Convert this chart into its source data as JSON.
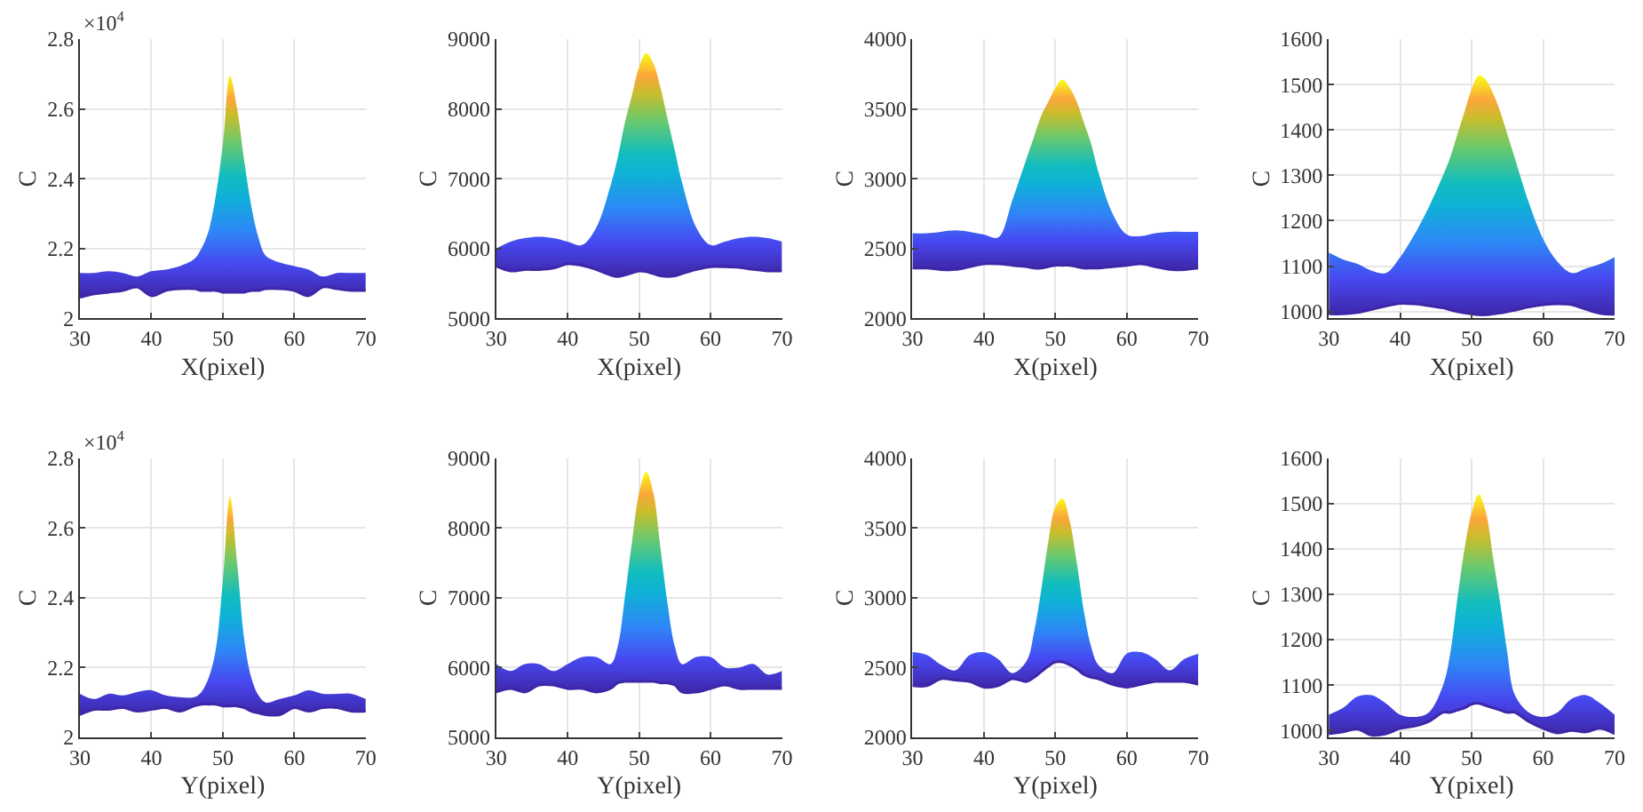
{
  "chart_data": [
    {
      "type": "area",
      "xlabel": "X(pixel)",
      "ylabel": "C",
      "annotations": [
        "×10$^{4}$"
      ],
      "grid": true,
      "xlim": [
        30,
        70
      ],
      "xticks": [
        30,
        40,
        50,
        60,
        70
      ],
      "ylim": [
        2,
        2.8
      ],
      "yticks": [
        2,
        2.2,
        2.4,
        2.6,
        2.8
      ],
      "x": [
        30,
        32,
        34,
        36,
        38,
        40,
        42,
        44,
        46,
        47,
        48,
        49,
        50,
        51,
        52,
        53,
        54,
        55,
        56,
        58,
        60,
        62,
        64,
        66,
        68,
        70
      ],
      "series": [
        {
          "type": "line",
          "color": "#3e26a8",
          "values": [
            2.06,
            2.07,
            2.075,
            2.08,
            2.09,
            2.065,
            2.08,
            2.085,
            2.085,
            2.08,
            2.08,
            2.08,
            2.075,
            2.075,
            2.075,
            2.075,
            2.08,
            2.08,
            2.085,
            2.085,
            2.08,
            2.065,
            2.09,
            2.085,
            2.08,
            2.08
          ]
        },
        {
          "values": [
            2.13,
            2.13,
            2.135,
            2.13,
            2.12,
            2.135,
            2.14,
            2.15,
            2.17,
            2.2,
            2.25,
            2.35,
            2.5,
            2.695,
            2.6,
            2.45,
            2.32,
            2.23,
            2.18,
            2.16,
            2.15,
            2.14,
            2.12,
            2.13,
            2.13,
            2.13
          ]
        }
      ]
    },
    {
      "type": "area",
      "xlabel": "X(pixel)",
      "ylabel": "C",
      "grid": true,
      "xlim": [
        30,
        70
      ],
      "xticks": [
        30,
        40,
        50,
        60,
        70
      ],
      "ylim": [
        5000,
        9000
      ],
      "yticks": [
        5000,
        6000,
        7000,
        8000,
        9000
      ],
      "x": [
        30,
        32,
        34,
        36,
        38,
        40,
        42,
        44,
        46,
        47,
        48,
        49,
        50,
        51,
        52,
        53,
        54,
        55,
        56,
        58,
        60,
        62,
        64,
        66,
        68,
        70
      ],
      "series": [
        {
          "type": "line",
          "color": "#3e26a8",
          "values": [
            5750,
            5680,
            5700,
            5700,
            5720,
            5780,
            5760,
            5700,
            5620,
            5600,
            5620,
            5650,
            5680,
            5670,
            5640,
            5610,
            5600,
            5610,
            5640,
            5700,
            5740,
            5740,
            5730,
            5700,
            5680,
            5680
          ]
        },
        {
          "values": [
            6000,
            6100,
            6150,
            6170,
            6150,
            6100,
            6050,
            6300,
            6900,
            7300,
            7800,
            8200,
            8600,
            8800,
            8650,
            8300,
            7850,
            7400,
            6950,
            6300,
            6050,
            6100,
            6150,
            6170,
            6150,
            6100
          ]
        }
      ]
    },
    {
      "type": "area",
      "xlabel": "X(pixel)",
      "ylabel": "C",
      "grid": true,
      "xlim": [
        30,
        70
      ],
      "xticks": [
        30,
        40,
        50,
        60,
        70
      ],
      "ylim": [
        2000,
        4000
      ],
      "yticks": [
        2000,
        2500,
        3000,
        3500,
        4000
      ],
      "x": [
        30,
        32,
        34,
        36,
        38,
        40,
        42,
        44,
        46,
        47,
        48,
        49,
        50,
        51,
        52,
        53,
        54,
        55,
        56,
        58,
        60,
        62,
        64,
        66,
        68,
        70
      ],
      "series": [
        {
          "type": "line",
          "color": "#3e26a8",
          "values": [
            2360,
            2360,
            2350,
            2350,
            2370,
            2390,
            2390,
            2380,
            2370,
            2360,
            2360,
            2370,
            2380,
            2380,
            2380,
            2370,
            2360,
            2360,
            2360,
            2370,
            2380,
            2390,
            2370,
            2350,
            2350,
            2360
          ]
        },
        {
          "values": [
            2610,
            2610,
            2620,
            2630,
            2620,
            2600,
            2580,
            2850,
            3150,
            3300,
            3450,
            3550,
            3650,
            3710,
            3650,
            3550,
            3400,
            3250,
            3050,
            2750,
            2600,
            2590,
            2610,
            2620,
            2620,
            2620
          ]
        }
      ]
    },
    {
      "type": "area",
      "xlabel": "X(pixel)",
      "ylabel": "C",
      "grid": true,
      "xlim": [
        30,
        70
      ],
      "xticks": [
        30,
        40,
        50,
        60,
        70
      ],
      "ylim": [
        985,
        1600
      ],
      "yticks": [
        1000,
        1100,
        1200,
        1300,
        1400,
        1500,
        1600
      ],
      "x": [
        30,
        32,
        34,
        36,
        38,
        40,
        42,
        44,
        46,
        47,
        48,
        49,
        50,
        51,
        52,
        53,
        54,
        55,
        56,
        58,
        60,
        62,
        64,
        66,
        68,
        70
      ],
      "series": [
        {
          "type": "line",
          "color": "#3e26a8",
          "values": [
            995,
            995,
            998,
            1005,
            1012,
            1018,
            1017,
            1013,
            1008,
            1004,
            1000,
            997,
            995,
            993,
            993,
            995,
            997,
            1000,
            1003,
            1010,
            1015,
            1017,
            1015,
            1005,
            996,
            994
          ]
        },
        {
          "values": [
            1130,
            1115,
            1105,
            1090,
            1085,
            1120,
            1170,
            1230,
            1300,
            1340,
            1390,
            1440,
            1490,
            1520,
            1510,
            1480,
            1440,
            1390,
            1340,
            1240,
            1160,
            1110,
            1085,
            1095,
            1105,
            1120
          ]
        }
      ]
    },
    {
      "type": "area",
      "xlabel": "Y(pixel)",
      "ylabel": "C",
      "annotations": [
        "×10$^{4}$"
      ],
      "grid": true,
      "xlim": [
        30,
        70
      ],
      "xticks": [
        30,
        40,
        50,
        60,
        70
      ],
      "ylim": [
        2,
        2.8
      ],
      "yticks": [
        2,
        2.2,
        2.4,
        2.6,
        2.8
      ],
      "x": [
        30,
        32,
        34,
        36,
        38,
        40,
        42,
        44,
        46,
        47,
        48,
        49,
        50,
        51,
        52,
        53,
        54,
        55,
        56,
        58,
        60,
        62,
        64,
        66,
        68,
        70
      ],
      "series": [
        {
          "type": "line",
          "color": "#3e26a8",
          "values": [
            2.065,
            2.08,
            2.08,
            2.085,
            2.075,
            2.08,
            2.085,
            2.075,
            2.09,
            2.095,
            2.095,
            2.095,
            2.09,
            2.09,
            2.09,
            2.085,
            2.075,
            2.07,
            2.065,
            2.065,
            2.085,
            2.075,
            2.085,
            2.085,
            2.075,
            2.075
          ]
        },
        {
          "values": [
            2.125,
            2.11,
            2.125,
            2.12,
            2.13,
            2.135,
            2.12,
            2.115,
            2.115,
            2.13,
            2.17,
            2.25,
            2.45,
            2.69,
            2.5,
            2.28,
            2.17,
            2.12,
            2.1,
            2.11,
            2.12,
            2.135,
            2.125,
            2.125,
            2.125,
            2.11
          ]
        }
      ]
    },
    {
      "type": "area",
      "xlabel": "Y(pixel)",
      "ylabel": "C",
      "grid": true,
      "xlim": [
        30,
        70
      ],
      "xticks": [
        30,
        40,
        50,
        60,
        70
      ],
      "ylim": [
        5000,
        9000
      ],
      "yticks": [
        5000,
        6000,
        7000,
        8000,
        9000
      ],
      "x": [
        30,
        32,
        34,
        36,
        38,
        40,
        42,
        44,
        46,
        47,
        48,
        49,
        50,
        51,
        52,
        53,
        54,
        55,
        56,
        58,
        60,
        62,
        64,
        66,
        68,
        70
      ],
      "series": [
        {
          "type": "line",
          "color": "#3e26a8",
          "values": [
            5650,
            5700,
            5650,
            5750,
            5750,
            5700,
            5700,
            5650,
            5700,
            5780,
            5800,
            5800,
            5800,
            5800,
            5800,
            5780,
            5780,
            5750,
            5650,
            5650,
            5700,
            5750,
            5700,
            5700,
            5700,
            5700
          ]
        },
        {
          "values": [
            6050,
            5950,
            6050,
            6050,
            5950,
            6050,
            6150,
            6150,
            6050,
            6300,
            7000,
            7800,
            8500,
            8800,
            8500,
            7700,
            6900,
            6300,
            6050,
            6150,
            6150,
            6000,
            6000,
            6050,
            5900,
            5950
          ]
        }
      ]
    },
    {
      "type": "area",
      "xlabel": "Y(pixel)",
      "ylabel": "C",
      "grid": true,
      "xlim": [
        30,
        70
      ],
      "xticks": [
        30,
        40,
        50,
        60,
        70
      ],
      "ylim": [
        2000,
        4000
      ],
      "yticks": [
        2000,
        2500,
        3000,
        3500,
        4000
      ],
      "x": [
        30,
        32,
        34,
        36,
        38,
        40,
        42,
        44,
        46,
        47,
        48,
        49,
        50,
        51,
        52,
        53,
        54,
        55,
        56,
        58,
        60,
        62,
        64,
        66,
        68,
        70
      ],
      "series": [
        {
          "type": "line",
          "color": "#3e26a8",
          "values": [
            2370,
            2370,
            2420,
            2410,
            2400,
            2360,
            2370,
            2420,
            2400,
            2430,
            2470,
            2510,
            2540,
            2540,
            2520,
            2490,
            2450,
            2430,
            2420,
            2380,
            2360,
            2380,
            2400,
            2400,
            2400,
            2380
          ]
        },
        {
          "values": [
            2610,
            2590,
            2520,
            2480,
            2590,
            2610,
            2560,
            2460,
            2550,
            2750,
            3050,
            3400,
            3650,
            3710,
            3550,
            3250,
            2900,
            2650,
            2520,
            2460,
            2600,
            2610,
            2560,
            2480,
            2560,
            2600
          ]
        }
      ]
    },
    {
      "type": "area",
      "xlabel": "Y(pixel)",
      "ylabel": "C",
      "grid": true,
      "xlim": [
        30,
        70
      ],
      "xticks": [
        30,
        40,
        50,
        60,
        70
      ],
      "ylim": [
        985,
        1600
      ],
      "yticks": [
        1000,
        1100,
        1200,
        1300,
        1400,
        1500,
        1600
      ],
      "x": [
        30,
        32,
        34,
        36,
        38,
        40,
        42,
        44,
        46,
        47,
        48,
        49,
        50,
        51,
        52,
        53,
        54,
        55,
        56,
        58,
        60,
        62,
        64,
        66,
        68,
        70
      ],
      "series": [
        {
          "type": "line",
          "color": "#3e26a8",
          "values": [
            993,
            997,
            1003,
            990,
            993,
            1005,
            1010,
            1020,
            1040,
            1040,
            1045,
            1050,
            1058,
            1060,
            1055,
            1050,
            1045,
            1040,
            1040,
            1020,
            1005,
            995,
            1000,
            997,
            1005,
            993
          ]
        },
        {
          "values": [
            1035,
            1050,
            1075,
            1078,
            1060,
            1035,
            1030,
            1040,
            1100,
            1170,
            1290,
            1400,
            1480,
            1520,
            1480,
            1380,
            1280,
            1170,
            1080,
            1040,
            1030,
            1040,
            1070,
            1078,
            1060,
            1035
          ]
        }
      ]
    }
  ]
}
